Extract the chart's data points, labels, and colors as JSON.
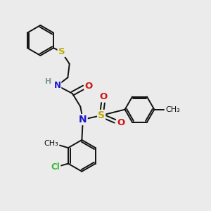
{
  "bg_color": "#ebebeb",
  "bond_color": "#111111",
  "bond_width": 1.4,
  "atom_colors": {
    "S": "#bbaa00",
    "N": "#1818cc",
    "O": "#cc1818",
    "Cl": "#33bb33",
    "C": "#111111",
    "H": "#7a9a9a"
  },
  "font_size": 8.5,
  "fig_size": [
    3.0,
    3.0
  ],
  "dpi": 100,
  "xlim": [
    0,
    10
  ],
  "ylim": [
    0,
    10
  ]
}
